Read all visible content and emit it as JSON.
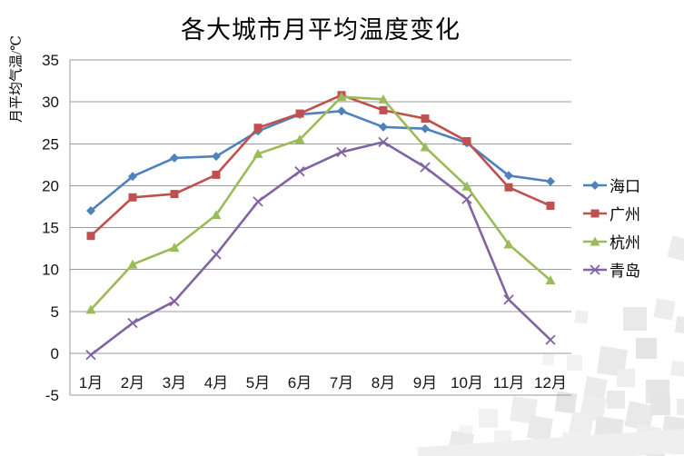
{
  "chart_data": {
    "type": "line",
    "title": "各大城市月平均温度变化",
    "xlabel": "",
    "ylabel": "月平均气温/℃",
    "categories": [
      "1月",
      "2月",
      "3月",
      "4月",
      "5月",
      "6月",
      "7月",
      "8月",
      "9月",
      "10月",
      "11月",
      "12月"
    ],
    "y_ticks": [
      35,
      30,
      25,
      20,
      15,
      10,
      5,
      0,
      -5
    ],
    "ylim": [
      -5,
      35
    ],
    "grid": true,
    "legend_position": "right",
    "series": [
      {
        "name": "海口",
        "marker": "diamond",
        "color": "#4F81BD",
        "values": [
          17.0,
          21.1,
          23.3,
          23.5,
          26.5,
          28.5,
          28.9,
          27.0,
          26.8,
          25.1,
          21.2,
          20.5
        ]
      },
      {
        "name": "广州",
        "marker": "square",
        "color": "#C0504D",
        "values": [
          14.0,
          18.6,
          19.0,
          21.3,
          26.9,
          28.6,
          30.8,
          29.0,
          28.0,
          25.3,
          19.8,
          17.6
        ]
      },
      {
        "name": "杭州",
        "marker": "triangle",
        "color": "#9BBB59",
        "values": [
          5.2,
          10.6,
          12.6,
          16.5,
          23.8,
          25.5,
          30.6,
          30.3,
          24.6,
          19.9,
          13.0,
          8.7
        ]
      },
      {
        "name": "青岛",
        "marker": "x",
        "color": "#8064A2",
        "values": [
          -0.2,
          3.6,
          6.2,
          11.8,
          18.1,
          21.7,
          24.0,
          25.2,
          22.2,
          18.4,
          6.4,
          1.6
        ]
      }
    ],
    "axis_color": "#9b9b9b"
  }
}
